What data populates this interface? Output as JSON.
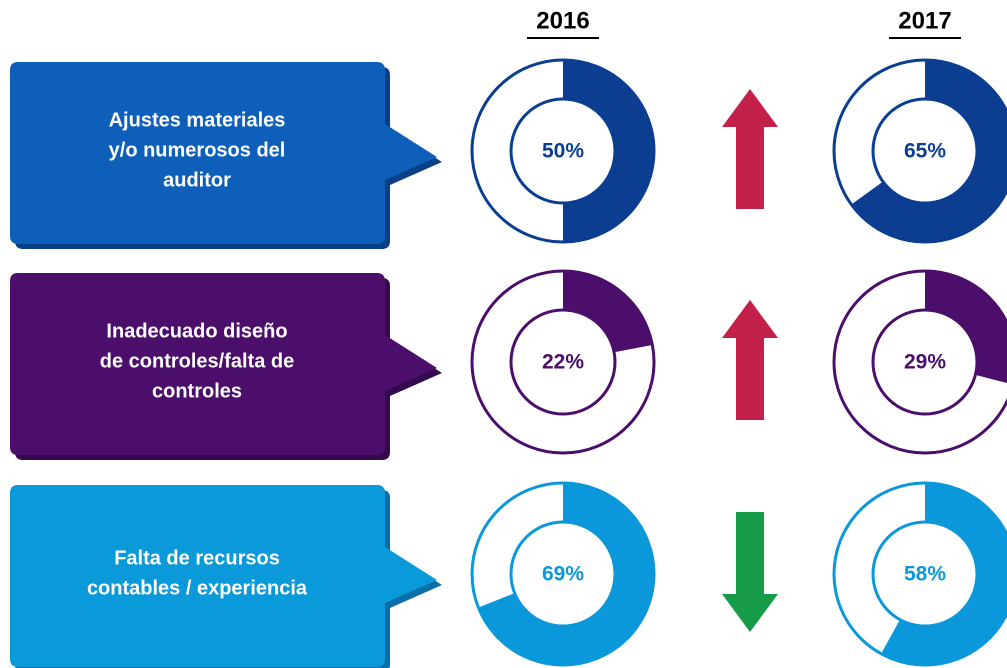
{
  "years": [
    "2016",
    "2017"
  ],
  "rows": [
    {
      "label": [
        "Ajustes materiales",
        "y/o numerosos del",
        "auditor"
      ],
      "color": "#0b3d91",
      "box_color": "#0d5fb9",
      "shadow_color": "#0a3f86",
      "values": [
        50,
        65
      ],
      "value_labels": [
        "50%",
        "65%"
      ],
      "trend": "up",
      "trend_color": "#c4214a"
    },
    {
      "label": [
        "Inadecuado diseño",
        "de controles/falta de",
        "controles"
      ],
      "color": "#4b0f6b",
      "box_color": "#4b0f6b",
      "shadow_color": "#35094d",
      "values": [
        22,
        29
      ],
      "value_labels": [
        "22%",
        "29%"
      ],
      "trend": "up",
      "trend_color": "#c4214a"
    },
    {
      "label": [
        "Falta de recursos",
        "contables / experiencia"
      ],
      "color": "#0a98db",
      "box_color": "#0a9ad9",
      "shadow_color": "#0a6fa8",
      "values": [
        69,
        58
      ],
      "value_labels": [
        "69%",
        "58%"
      ],
      "trend": "down",
      "trend_color": "#169b48"
    }
  ]
}
